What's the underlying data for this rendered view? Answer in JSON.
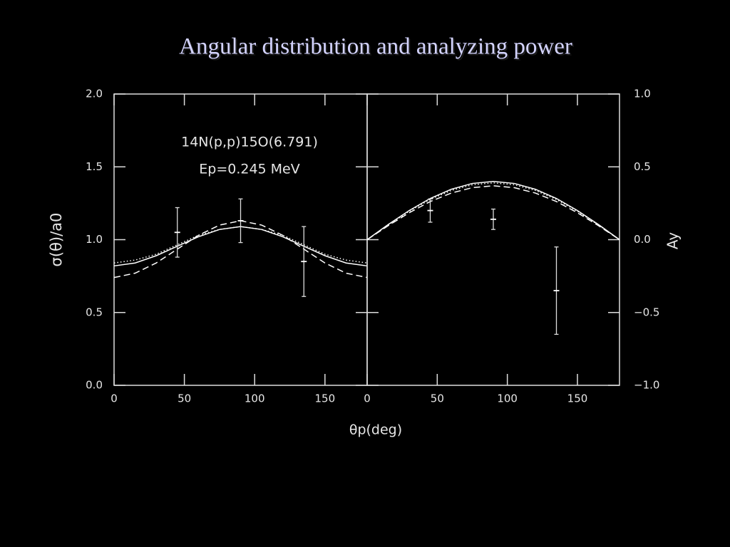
{
  "title": "Angular distribution and analyzing power",
  "xlabel": "θp(deg)",
  "chart_data": [
    {
      "type": "line",
      "ylabel": "σ(θ)/a0",
      "yaxis_side": "left",
      "annotations": [
        "14N(p,p)15O(6.791)",
        "Ep=0.245 MeV"
      ],
      "xlim": [
        0,
        180
      ],
      "xticks": [
        0,
        50,
        100,
        150
      ],
      "ylim": [
        0,
        2
      ],
      "yticks": [
        {
          "value": 0,
          "label": "0.0"
        },
        {
          "value": 0.5,
          "label": "0.5"
        },
        {
          "value": 1,
          "label": "1.0"
        },
        {
          "value": 1.5,
          "label": "1.5"
        },
        {
          "value": 2,
          "label": "2.0"
        }
      ],
      "x": [
        0,
        15,
        30,
        45,
        60,
        75,
        90,
        105,
        120,
        135,
        150,
        165,
        180
      ],
      "series": [
        {
          "style": "solid",
          "color": "#ffffff",
          "values": [
            0.82,
            0.84,
            0.89,
            0.955,
            1.02,
            1.07,
            1.09,
            1.07,
            1.02,
            0.955,
            0.89,
            0.84,
            0.82
          ]
        },
        {
          "style": "dotted",
          "color": "#ffffff",
          "values": [
            0.84,
            0.86,
            0.9,
            0.965,
            1.03,
            1.07,
            1.09,
            1.07,
            1.03,
            0.965,
            0.9,
            0.86,
            0.84
          ]
        },
        {
          "style": "dashed",
          "color": "#ffffff",
          "values": [
            0.74,
            0.77,
            0.84,
            0.935,
            1.03,
            1.1,
            1.13,
            1.1,
            1.03,
            0.935,
            0.84,
            0.77,
            0.74
          ]
        }
      ],
      "points": {
        "x": [
          45,
          90,
          135
        ],
        "values": [
          1.05,
          1.13,
          0.85
        ],
        "errors": [
          0.17,
          0.15,
          0.24
        ]
      }
    },
    {
      "type": "line",
      "ylabel": "Ay",
      "yaxis_side": "right",
      "xlim": [
        0,
        180
      ],
      "xticks": [
        0,
        50,
        100,
        150
      ],
      "ylim": [
        -1,
        1
      ],
      "yticks": [
        {
          "value": -1,
          "label": "−1.0"
        },
        {
          "value": -0.5,
          "label": "−0.5"
        },
        {
          "value": 0,
          "label": "0.0"
        },
        {
          "value": 0.5,
          "label": "0.5"
        },
        {
          "value": 1,
          "label": "1.0"
        }
      ],
      "x": [
        0,
        15,
        30,
        45,
        60,
        75,
        90,
        105,
        120,
        135,
        150,
        165,
        180
      ],
      "series": [
        {
          "style": "solid",
          "color": "#ffffff",
          "values": [
            0,
            0.104,
            0.2,
            0.283,
            0.346,
            0.386,
            0.4,
            0.386,
            0.346,
            0.283,
            0.2,
            0.104,
            0
          ]
        },
        {
          "style": "dotted",
          "color": "#ffffff",
          "values": [
            0,
            0.1,
            0.195,
            0.276,
            0.338,
            0.377,
            0.39,
            0.377,
            0.338,
            0.276,
            0.195,
            0.1,
            0
          ]
        },
        {
          "style": "dashed",
          "color": "#ffffff",
          "values": [
            0,
            0.096,
            0.185,
            0.262,
            0.32,
            0.357,
            0.37,
            0.357,
            0.32,
            0.262,
            0.185,
            0.096,
            0
          ]
        }
      ],
      "points": {
        "x": [
          45,
          90,
          135
        ],
        "values": [
          0.2,
          0.14,
          -0.35
        ],
        "errors": [
          0.08,
          0.07,
          0.3
        ]
      }
    }
  ]
}
